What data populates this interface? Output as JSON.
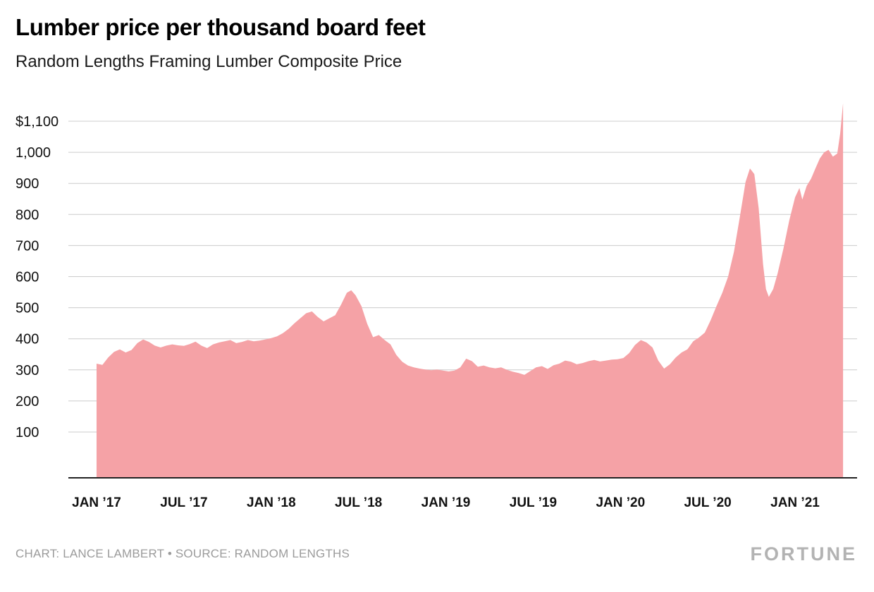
{
  "footer": {
    "credit": "CHART: LANCE LAMBERT • SOURCE: RANDOM LENGTHS",
    "brand": "FORTUNE"
  },
  "colors": {
    "area": "#f5a2a6",
    "grid": "#cccccc",
    "axis": "#222222",
    "text": "#111111",
    "footer_text": "#9b9b9b",
    "brand": "#b3b3b3"
  },
  "chart_data": {
    "type": "area",
    "title": "Lumber price per thousand board feet",
    "subtitle": "Random Lengths Framing Lumber Composite Price",
    "xlabel": "",
    "ylabel": "",
    "x_unit": "months since Jan 2017",
    "xlim": [
      0,
      51.3
    ],
    "ylim": [
      0,
      1160
    ],
    "grid": "horizontal",
    "legend": "none",
    "y_ticks": [
      1100,
      1000,
      900,
      800,
      700,
      600,
      500,
      400,
      300,
      200,
      100
    ],
    "y_tick_labels": [
      "$1,100",
      "1,000",
      "900",
      "800",
      "700",
      "600",
      "500",
      "400",
      "300",
      "200",
      "100"
    ],
    "x_tick_months": [
      0,
      6,
      12,
      18,
      24,
      30,
      36,
      42,
      48
    ],
    "x_tick_labels": [
      "JAN ’17",
      "JUL ’17",
      "JAN ’18",
      "JUL ’18",
      "JAN ’19",
      "JUL ’19",
      "JAN ’20",
      "JUL ’20",
      "JAN ’21"
    ],
    "points": [
      [
        0,
        320
      ],
      [
        0.4,
        316
      ],
      [
        0.8,
        340
      ],
      [
        1.2,
        358
      ],
      [
        1.6,
        366
      ],
      [
        2,
        356
      ],
      [
        2.4,
        364
      ],
      [
        2.8,
        386
      ],
      [
        3.2,
        398
      ],
      [
        3.6,
        390
      ],
      [
        4,
        378
      ],
      [
        4.4,
        372
      ],
      [
        4.8,
        378
      ],
      [
        5.2,
        382
      ],
      [
        5.6,
        379
      ],
      [
        6,
        377
      ],
      [
        6.4,
        383
      ],
      [
        6.8,
        391
      ],
      [
        7.2,
        378
      ],
      [
        7.6,
        370
      ],
      [
        8,
        382
      ],
      [
        8.4,
        388
      ],
      [
        8.8,
        392
      ],
      [
        9.2,
        396
      ],
      [
        9.6,
        386
      ],
      [
        10,
        390
      ],
      [
        10.4,
        396
      ],
      [
        10.8,
        392
      ],
      [
        11.2,
        394
      ],
      [
        11.6,
        398
      ],
      [
        12,
        402
      ],
      [
        12.4,
        408
      ],
      [
        12.8,
        418
      ],
      [
        13.2,
        432
      ],
      [
        13.6,
        450
      ],
      [
        14,
        466
      ],
      [
        14.4,
        482
      ],
      [
        14.8,
        488
      ],
      [
        15.2,
        470
      ],
      [
        15.6,
        456
      ],
      [
        16,
        466
      ],
      [
        16.4,
        476
      ],
      [
        16.8,
        510
      ],
      [
        17.2,
        548
      ],
      [
        17.5,
        556
      ],
      [
        17.8,
        540
      ],
      [
        18.2,
        505
      ],
      [
        18.6,
        448
      ],
      [
        19,
        405
      ],
      [
        19.4,
        412
      ],
      [
        19.8,
        396
      ],
      [
        20.2,
        382
      ],
      [
        20.6,
        348
      ],
      [
        21,
        326
      ],
      [
        21.4,
        314
      ],
      [
        21.8,
        308
      ],
      [
        22.2,
        304
      ],
      [
        22.6,
        301
      ],
      [
        23,
        299
      ],
      [
        23.4,
        301
      ],
      [
        23.8,
        298
      ],
      [
        24.2,
        295
      ],
      [
        24.6,
        298
      ],
      [
        25,
        308
      ],
      [
        25.4,
        336
      ],
      [
        25.8,
        328
      ],
      [
        26.2,
        310
      ],
      [
        26.6,
        314
      ],
      [
        27,
        308
      ],
      [
        27.4,
        305
      ],
      [
        27.8,
        308
      ],
      [
        28.2,
        300
      ],
      [
        28.6,
        294
      ],
      [
        29,
        290
      ],
      [
        29.4,
        284
      ],
      [
        29.8,
        296
      ],
      [
        30.2,
        308
      ],
      [
        30.6,
        312
      ],
      [
        31,
        303
      ],
      [
        31.4,
        315
      ],
      [
        31.8,
        320
      ],
      [
        32.2,
        330
      ],
      [
        32.6,
        326
      ],
      [
        33,
        318
      ],
      [
        33.4,
        322
      ],
      [
        33.8,
        328
      ],
      [
        34.2,
        332
      ],
      [
        34.6,
        327
      ],
      [
        35,
        330
      ],
      [
        35.4,
        333
      ],
      [
        35.8,
        334
      ],
      [
        36.2,
        338
      ],
      [
        36.6,
        354
      ],
      [
        37,
        380
      ],
      [
        37.4,
        396
      ],
      [
        37.8,
        388
      ],
      [
        38.2,
        372
      ],
      [
        38.6,
        330
      ],
      [
        39,
        304
      ],
      [
        39.4,
        318
      ],
      [
        39.8,
        340
      ],
      [
        40.2,
        356
      ],
      [
        40.6,
        366
      ],
      [
        41,
        392
      ],
      [
        41.4,
        404
      ],
      [
        41.8,
        420
      ],
      [
        42.2,
        460
      ],
      [
        42.6,
        505
      ],
      [
        43,
        548
      ],
      [
        43.4,
        600
      ],
      [
        43.8,
        680
      ],
      [
        44.2,
        790
      ],
      [
        44.6,
        905
      ],
      [
        44.9,
        948
      ],
      [
        45.2,
        930
      ],
      [
        45.5,
        820
      ],
      [
        45.8,
        640
      ],
      [
        46,
        560
      ],
      [
        46.2,
        535
      ],
      [
        46.5,
        560
      ],
      [
        46.8,
        610
      ],
      [
        47.2,
        690
      ],
      [
        47.6,
        780
      ],
      [
        48,
        855
      ],
      [
        48.3,
        885
      ],
      [
        48.5,
        848
      ],
      [
        48.8,
        892
      ],
      [
        49.1,
        915
      ],
      [
        49.4,
        948
      ],
      [
        49.7,
        980
      ],
      [
        50,
        1000
      ],
      [
        50.3,
        1008
      ],
      [
        50.6,
        986
      ],
      [
        50.9,
        996
      ],
      [
        51.1,
        1060
      ],
      [
        51.3,
        1158
      ]
    ]
  }
}
